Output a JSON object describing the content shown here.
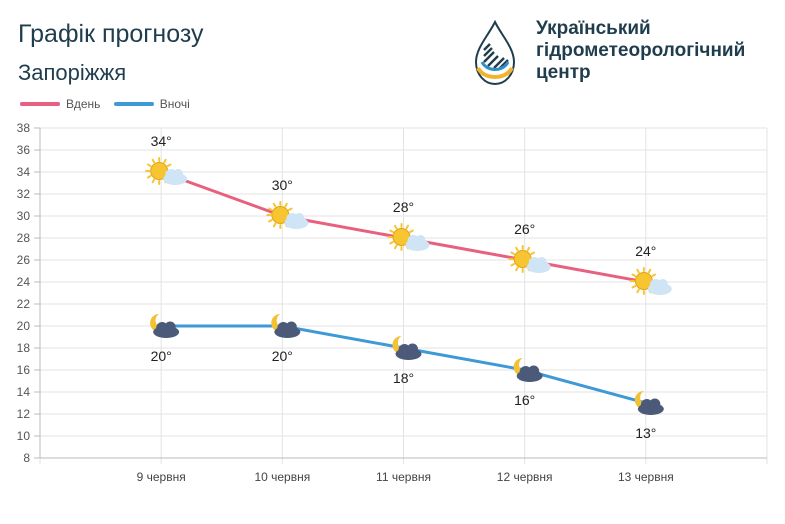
{
  "header": {
    "title": "Графік прогнозу",
    "subtitle": "Запоріжжя",
    "org_name": "Український\nгідрометеорологічний\nцентр",
    "logo_icon": "drop-logo-icon"
  },
  "colors": {
    "day": "#e8607f",
    "night": "#3e9ad6",
    "grid": "#e3e3e3",
    "sun": "#f7c531",
    "cloud": "#cfe4f5",
    "night_cloud": "#4a5a78",
    "moon": "#f2c234"
  },
  "chart_data": {
    "type": "line",
    "categories": [
      "9 червня",
      "10 червня",
      "11 червня",
      "12 червня",
      "13 червня"
    ],
    "series": [
      {
        "name": "Вдень",
        "values": [
          34,
          30,
          28,
          26,
          24
        ],
        "labels": [
          "34°",
          "30°",
          "28°",
          "26°",
          "24°"
        ],
        "icon": "sun-cloud-icon",
        "label_position": "above"
      },
      {
        "name": "Вночі",
        "values": [
          20,
          20,
          18,
          16,
          13
        ],
        "labels": [
          "20°",
          "20°",
          "18°",
          "16°",
          "13°"
        ],
        "icon": "moon-cloud-icon",
        "label_position": "below"
      }
    ],
    "ylim": [
      8,
      38
    ],
    "yticks": [
      8,
      10,
      12,
      14,
      16,
      18,
      20,
      22,
      24,
      26,
      28,
      30,
      32,
      34,
      36,
      38
    ],
    "grid": true,
    "legend": "top-left"
  }
}
